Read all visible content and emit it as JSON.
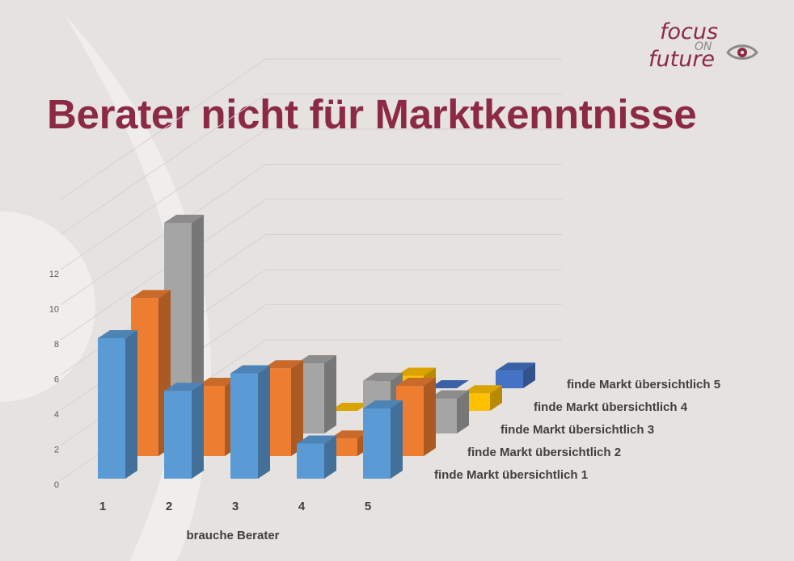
{
  "logo": {
    "word1": "focus",
    "word2": "ON",
    "word3": "future"
  },
  "title": "Berater nicht für Marktkenntnisse",
  "chart_data": {
    "type": "bar",
    "style": "3d-column",
    "categories": [
      "1",
      "2",
      "3",
      "4",
      "5"
    ],
    "series": [
      {
        "name": "finde Markt übersichtlich 1",
        "color": "#5b9bd5",
        "values": [
          8,
          5,
          6,
          2,
          4
        ]
      },
      {
        "name": "finde Markt übersichtlich 2",
        "color": "#ed7d31",
        "values": [
          9,
          4,
          5,
          1,
          4
        ]
      },
      {
        "name": "finde Markt übersichtlich 3",
        "color": "#a5a5a5",
        "values": [
          12,
          0,
          4,
          3,
          2
        ]
      },
      {
        "name": "finde Markt übersichtlich 4",
        "color": "#ffc000",
        "values": [
          0,
          0,
          0,
          2,
          1
        ]
      },
      {
        "name": "finde Markt übersichtlich 5",
        "color": "#4472c4",
        "values": [
          0,
          0,
          0,
          0,
          1
        ]
      }
    ],
    "yticks": [
      0,
      2,
      4,
      6,
      8,
      10,
      12
    ],
    "ylim": [
      0,
      16
    ],
    "xlabel": "brauche Berater",
    "ylabel": "",
    "grid": true
  }
}
